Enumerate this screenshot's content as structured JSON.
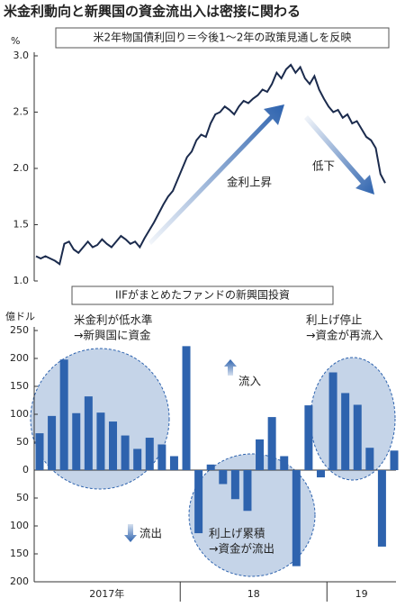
{
  "title": "米金利動向と新興国の資金流出入は密接に関わる",
  "chart_data": [
    {
      "type": "line",
      "subtitle": "米2年物国債利回り＝今後1～2年の政策見通しを反映",
      "y_unit": "%",
      "color": "#1b2b4d",
      "values": [
        1.22,
        1.2,
        1.22,
        1.2,
        1.18,
        1.15,
        1.33,
        1.35,
        1.28,
        1.25,
        1.3,
        1.35,
        1.3,
        1.32,
        1.37,
        1.33,
        1.3,
        1.35,
        1.4,
        1.37,
        1.33,
        1.35,
        1.3,
        1.38,
        1.45,
        1.52,
        1.6,
        1.68,
        1.75,
        1.8,
        1.9,
        2.0,
        2.1,
        2.15,
        2.25,
        2.3,
        2.28,
        2.4,
        2.48,
        2.5,
        2.55,
        2.52,
        2.48,
        2.55,
        2.6,
        2.58,
        2.62,
        2.65,
        2.7,
        2.68,
        2.75,
        2.85,
        2.8,
        2.88,
        2.92,
        2.85,
        2.9,
        2.8,
        2.75,
        2.82,
        2.7,
        2.62,
        2.55,
        2.5,
        2.52,
        2.45,
        2.48,
        2.4,
        2.42,
        2.35,
        2.28,
        2.25,
        2.18,
        1.95,
        1.87
      ],
      "ylim": [
        1.0,
        3.0
      ],
      "yticks": [
        {
          "value": 1.0,
          "label": "1.0"
        },
        1.5,
        {
          "value": 2.0,
          "label": "2.0"
        },
        2.5,
        {
          "value": 3.0,
          "label": "3.0"
        }
      ],
      "annotations": [
        "金利上昇",
        "低下"
      ]
    },
    {
      "type": "bar",
      "subtitle": "IIFがまとめたファンドの新興国投資",
      "y_unit": "億ドル",
      "color": "#2e63ae",
      "values": [
        66,
        97,
        198,
        102,
        132,
        103,
        87,
        62,
        38,
        58,
        46,
        25,
        222,
        -113,
        10,
        -25,
        -52,
        -73,
        55,
        95,
        25,
        -172,
        116,
        -13,
        175,
        138,
        117,
        40,
        -137,
        35
      ],
      "year_groups": [
        {
          "label": "2017年",
          "months": 12
        },
        {
          "label": "18",
          "months": 12
        },
        {
          "label": "19",
          "months": 6
        }
      ],
      "ylim": [
        -200,
        250
      ],
      "yticks": [
        {
          "value": -200,
          "label": "200"
        },
        {
          "value": -150,
          "label": "150"
        },
        {
          "value": -100,
          "label": "100"
        },
        {
          "value": -50,
          "label": "50"
        },
        0,
        50,
        100,
        150,
        200,
        250
      ],
      "annotations": [
        [
          "米金利が低水準",
          "→新興国に資金"
        ],
        [
          "利上げ累積",
          "→資金が流出"
        ],
        [
          "利上げ停止",
          "→資金が再流入"
        ],
        "流入",
        "流出"
      ]
    }
  ]
}
